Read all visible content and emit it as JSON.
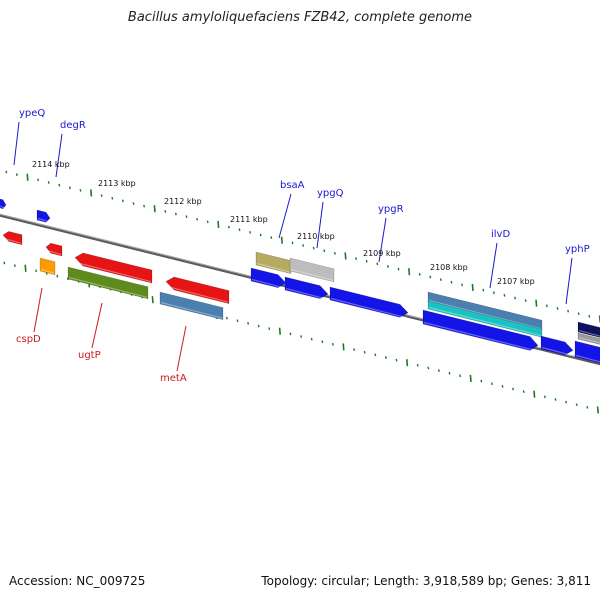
{
  "title": "Bacillus amyloliquefaciens FZB42, complete genome",
  "footer": {
    "accession": "Accession: NC_009725",
    "stats": "Topology: circular; Length: 3,918,589 bp; Genes: 3,811"
  },
  "colors": {
    "backbone": "#7a7a7a",
    "tick": "#1f7a1f",
    "forward_label": "#1a1acc",
    "reverse_label": "#cc1a1a"
  },
  "kbp_labels": [
    "2114 kbp",
    "2113 kbp",
    "2112 kbp",
    "2111 kbp",
    "2110 kbp",
    "2109 kbp",
    "2108 kbp",
    "2107 kbp"
  ],
  "gene_labels": [
    {
      "name": "ypeQ",
      "strand": "forward"
    },
    {
      "name": "degR",
      "strand": "forward"
    },
    {
      "name": "bsaA",
      "strand": "forward"
    },
    {
      "name": "ypgQ",
      "strand": "forward"
    },
    {
      "name": "ypgR",
      "strand": "forward"
    },
    {
      "name": "ilvD",
      "strand": "forward"
    },
    {
      "name": "yphP",
      "strand": "forward"
    },
    {
      "name": "cspD",
      "strand": "reverse"
    },
    {
      "name": "ugtP",
      "strand": "reverse"
    },
    {
      "name": "metA",
      "strand": "reverse"
    }
  ],
  "features": [
    {
      "color": "#1414e6"
    },
    {
      "color": "#1414e6"
    },
    {
      "color": "#e61414"
    },
    {
      "color": "#e61414"
    },
    {
      "color": "#ff9900"
    },
    {
      "color": "#e61414"
    },
    {
      "color": "#5f8a1e"
    },
    {
      "color": "#e61414"
    },
    {
      "color": "#4a7fb0"
    },
    {
      "color": "#b5ab63"
    },
    {
      "color": "#bdbdbd"
    },
    {
      "color": "#1414e6"
    },
    {
      "color": "#1414e6"
    },
    {
      "color": "#1414e6"
    },
    {
      "color": "#4a7fb0"
    },
    {
      "color": "#19c3c3"
    },
    {
      "color": "#1414e6"
    },
    {
      "color": "#1414e6"
    },
    {
      "color": "#101060"
    },
    {
      "color": "#9a9a9a"
    },
    {
      "color": "#1414e6"
    }
  ]
}
